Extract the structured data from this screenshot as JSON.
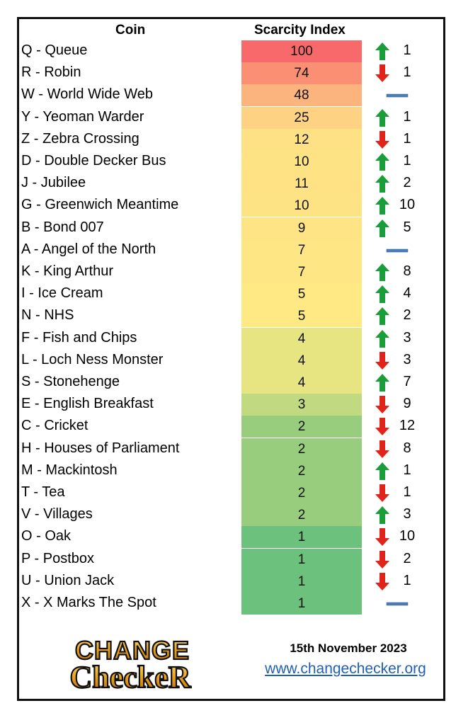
{
  "chart_data": {
    "type": "table",
    "columns": [
      "Coin",
      "Scarcity Index"
    ],
    "rows": [
      {
        "coin": "Q - Queue",
        "index": 100,
        "trend": "up",
        "change": "1",
        "color": "#f8696b"
      },
      {
        "coin": "R - Robin",
        "index": 74,
        "trend": "down",
        "change": "1",
        "color": "#fa8f74"
      },
      {
        "coin": "W - World Wide Web",
        "index": 48,
        "trend": "same",
        "change": "",
        "color": "#fcb47e"
      },
      {
        "coin": "Y - Yeoman Warder",
        "index": 25,
        "trend": "up",
        "change": "1",
        "color": "#fed283"
      },
      {
        "coin": "Z - Zebra Crossing",
        "index": 12,
        "trend": "down",
        "change": "1",
        "color": "#fee184"
      },
      {
        "coin": "D - Double Decker Bus",
        "index": 10,
        "trend": "up",
        "change": "1",
        "color": "#fee384"
      },
      {
        "coin": "J - Jubilee",
        "index": 11,
        "trend": "up",
        "change": "2",
        "color": "#fee284"
      },
      {
        "coin": "G - Greenwich Meantime",
        "index": 10,
        "trend": "up",
        "change": "10",
        "color": "#fee384"
      },
      {
        "coin": "B - Bond 007",
        "index": 9,
        "trend": "up",
        "change": "5",
        "color": "#fee484"
      },
      {
        "coin": "A - Angel of the North",
        "index": 7,
        "trend": "same",
        "change": "",
        "color": "#fee684"
      },
      {
        "coin": "K - King Arthur",
        "index": 7,
        "trend": "up",
        "change": "8",
        "color": "#fee684"
      },
      {
        "coin": "I - Ice Cream",
        "index": 5,
        "trend": "up",
        "change": "4",
        "color": "#fee984"
      },
      {
        "coin": "N - NHS",
        "index": 5,
        "trend": "up",
        "change": "2",
        "color": "#fee984"
      },
      {
        "coin": "F - Fish and Chips",
        "index": 4,
        "trend": "up",
        "change": "3",
        "color": "#e7e582"
      },
      {
        "coin": "L - Loch Ness Monster",
        "index": 4,
        "trend": "down",
        "change": "3",
        "color": "#e7e582"
      },
      {
        "coin": "S - Stonehenge",
        "index": 4,
        "trend": "up",
        "change": "7",
        "color": "#e7e582"
      },
      {
        "coin": "E - English Breakfast",
        "index": 3,
        "trend": "down",
        "change": "9",
        "color": "#c1d980"
      },
      {
        "coin": "C - Cricket",
        "index": 2,
        "trend": "down",
        "change": "12",
        "color": "#98cd7e"
      },
      {
        "coin": "H - Houses of Parliament",
        "index": 2,
        "trend": "down",
        "change": "8",
        "color": "#98cd7e"
      },
      {
        "coin": "M - Mackintosh",
        "index": 2,
        "trend": "up",
        "change": "1",
        "color": "#98cd7e"
      },
      {
        "coin": "T - Tea",
        "index": 2,
        "trend": "down",
        "change": "1",
        "color": "#98cd7e"
      },
      {
        "coin": "V - Villages",
        "index": 2,
        "trend": "up",
        "change": "3",
        "color": "#98cd7e"
      },
      {
        "coin": "O - Oak",
        "index": 1,
        "trend": "down",
        "change": "10",
        "color": "#6cc17c"
      },
      {
        "coin": "P - Postbox",
        "index": 1,
        "trend": "down",
        "change": "2",
        "color": "#6cc17c"
      },
      {
        "coin": "U - Union Jack",
        "index": 1,
        "trend": "down",
        "change": "1",
        "color": "#6cc17c"
      },
      {
        "coin": "X - X Marks The Spot",
        "index": 1,
        "trend": "same",
        "change": "",
        "color": "#6cc17c"
      }
    ]
  },
  "footer": {
    "logo_line1": "CHANGE",
    "logo_line2": "CheckeR",
    "date": "15th November 2023",
    "website": "www.changechecker.org"
  },
  "colors": {
    "up": "#1a9e3a",
    "down": "#e2231a",
    "same": "#4a7ebb"
  }
}
